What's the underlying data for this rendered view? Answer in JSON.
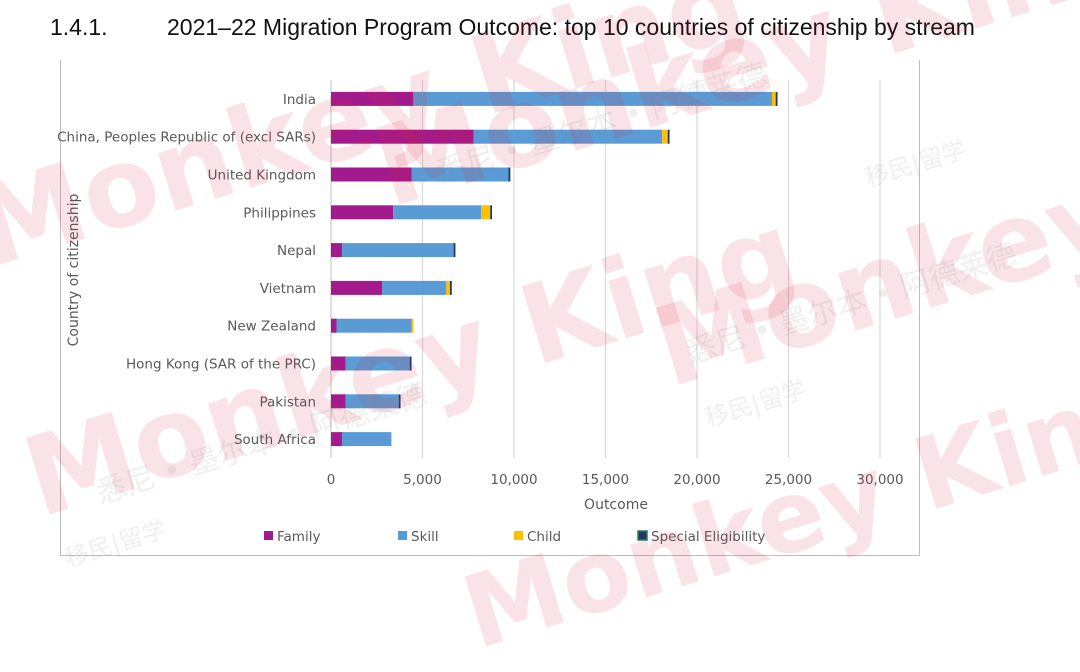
{
  "heading": {
    "number": "1.4.1.",
    "title": "2021–22 Migration Program Outcome: top 10 countries of citizenship by stream"
  },
  "watermark": {
    "brand": "Monkey King",
    "tag_cn": "移民|留学",
    "name_cn": "悉尼 • 墨尔本 • 阿德莱德"
  },
  "colors": {
    "Family": "#a21a8c",
    "Skill": "#5b9bd5",
    "Child": "#ffc000",
    "Special Eligibility": "#1f3864",
    "grid": "#d9d9d9",
    "text": "#595959",
    "watermark": "#d6283e"
  },
  "chart_data": {
    "type": "bar",
    "orientation": "horizontal",
    "stacked": true,
    "categories": [
      "India",
      "China, Peoples Republic of (excl SARs)",
      "United Kingdom",
      "Philippines",
      "Nepal",
      "Vietnam",
      "New Zealand",
      "Hong Kong (SAR of the PRC)",
      "Pakistan",
      "South Africa"
    ],
    "series": [
      {
        "name": "Family",
        "values": [
          4500,
          7800,
          4400,
          3400,
          600,
          2800,
          300,
          800,
          800,
          600
        ]
      },
      {
        "name": "Skill",
        "values": [
          19600,
          10300,
          5300,
          4800,
          6100,
          3500,
          4100,
          3500,
          2900,
          2700
        ]
      },
      {
        "name": "Child",
        "values": [
          200,
          300,
          0,
          500,
          0,
          200,
          100,
          0,
          0,
          0
        ]
      },
      {
        "name": "Special Eligibility",
        "values": [
          100,
          100,
          100,
          100,
          100,
          100,
          0,
          100,
          100,
          0
        ]
      }
    ],
    "xlabel": "Outcome",
    "ylabel": "Country of citizenship",
    "xlim": [
      0,
      30000
    ],
    "xticks": [
      0,
      5000,
      10000,
      15000,
      20000,
      25000,
      30000
    ],
    "xtick_labels": [
      "0",
      "5,000",
      "10,000",
      "15,000",
      "20,000",
      "25,000",
      "30,000"
    ],
    "grid": true,
    "legend_position": "bottom"
  }
}
